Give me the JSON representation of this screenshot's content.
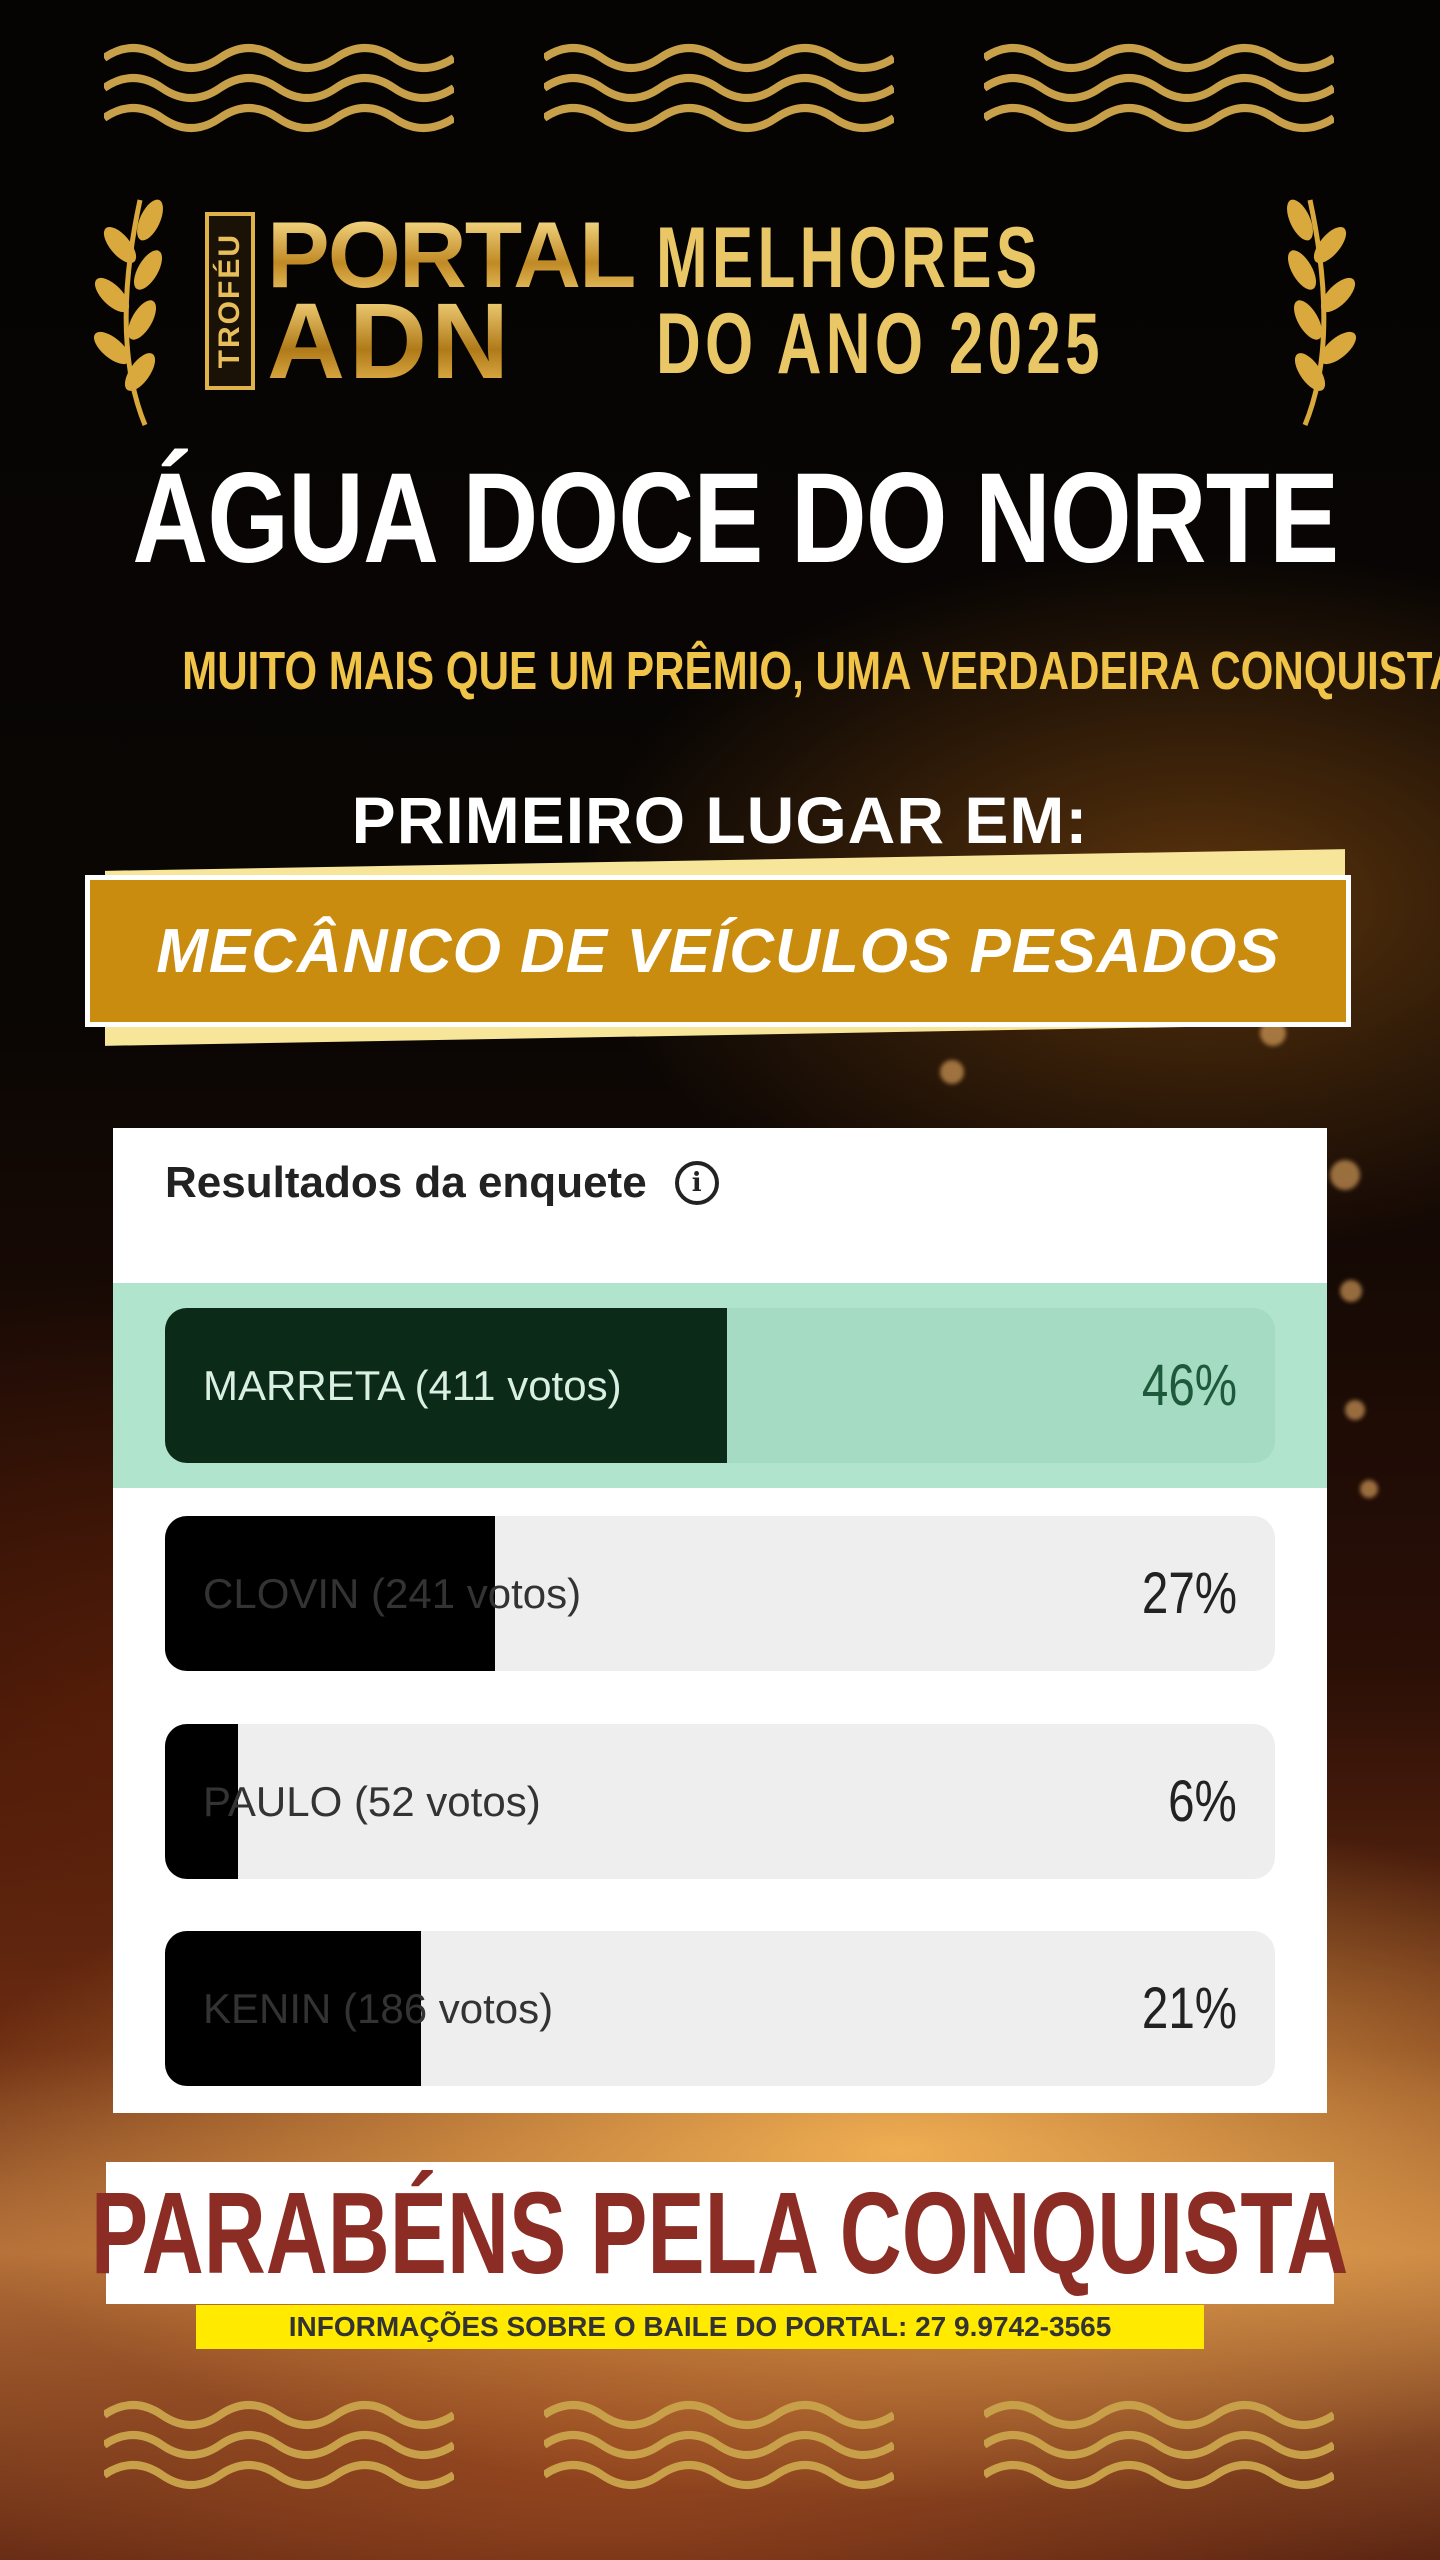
{
  "brand": {
    "trofeu": "TROFÉU",
    "portal": "PORTAL",
    "adn": "ADN",
    "melhores_line1": "MELHORES",
    "melhores_line2": "DO ANO 2025"
  },
  "city": "ÁGUA DOCE DO NORTE",
  "tagline": "MUITO MAIS QUE UM PRÊMIO, UMA VERDADEIRA CONQUISTA!",
  "award": {
    "heading": "PRIMEIRO LUGAR EM:",
    "category": "MECÂNICO DE VEÍCULOS PESADOS"
  },
  "poll": {
    "title": "Resultados da enquete",
    "info_icon": "info-icon",
    "options": [
      {
        "label": "MARRETA (411 votos)",
        "percent_text": "46%",
        "percent": 46,
        "winner": true
      },
      {
        "label": "CLOVIN (241 votos)",
        "percent_text": "27%",
        "percent": 27,
        "winner": false
      },
      {
        "label": "PAULO (52 votos)",
        "percent_text": "6%",
        "percent": 6,
        "winner": false
      },
      {
        "label": "KENIN (186 votos)",
        "percent_text": "21%",
        "percent": 21,
        "winner": false
      }
    ]
  },
  "congrats": "PARABÉNS PELA CONQUISTA",
  "info_line": "INFORMAÇÕES SOBRE O BAILE DO PORTAL: 27 9.9742-3565",
  "colors": {
    "gold": "#c98c0f",
    "winner_band": "#b1e4cd",
    "congrats_text": "#8b2d24",
    "info_bar": "#ffea00"
  }
}
